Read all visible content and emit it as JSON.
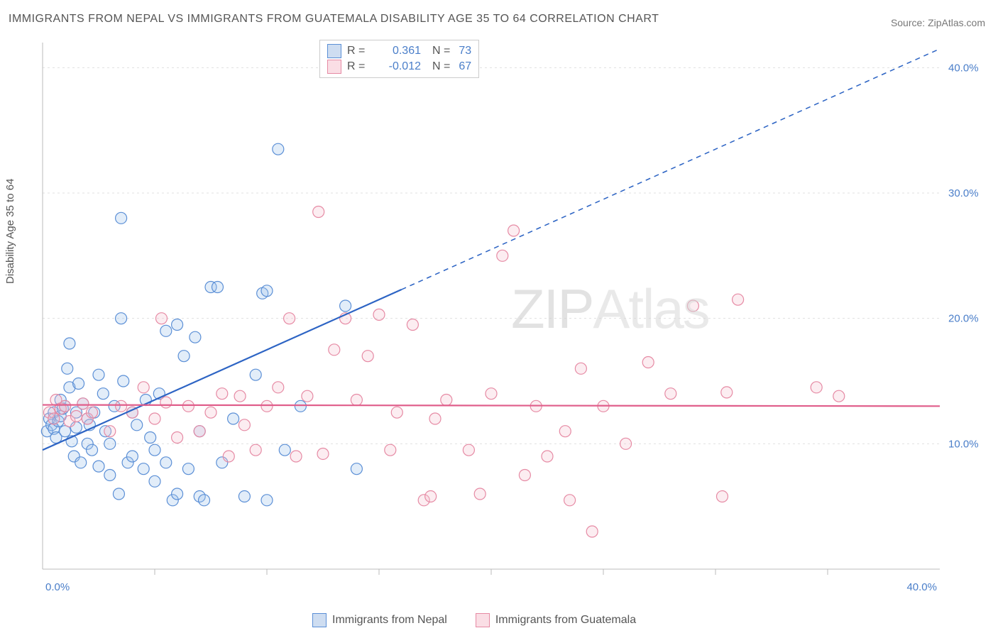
{
  "title": "IMMIGRANTS FROM NEPAL VS IMMIGRANTS FROM GUATEMALA DISABILITY AGE 35 TO 64 CORRELATION CHART",
  "source": "Source: ZipAtlas.com",
  "ylabel": "Disability Age 35 to 64",
  "watermark_a": "ZIP",
  "watermark_b": "Atlas",
  "chart": {
    "type": "scatter",
    "background_color": "#ffffff",
    "grid_color": "#e0e0e0",
    "axis_line_color": "#bbbbbb",
    "tick_label_color": "#4a7ec9",
    "xlim": [
      0,
      40
    ],
    "ylim": [
      0,
      42
    ],
    "xticks": [
      0,
      40
    ],
    "xtick_labels": [
      "0.0%",
      "40.0%"
    ],
    "yticks": [
      10,
      20,
      30,
      40
    ],
    "ytick_labels": [
      "10.0%",
      "20.0%",
      "30.0%",
      "40.0%"
    ],
    "xtick_minor": [
      5,
      10,
      15,
      20,
      25,
      30,
      35
    ],
    "marker_radius": 8,
    "marker_fill_opacity": 0.3,
    "marker_stroke_width": 1.2,
    "series": [
      {
        "name": "Immigrants from Nepal",
        "label": "Immigrants from Nepal",
        "color_fill": "#9ec3eb",
        "color_stroke": "#5b8fd6",
        "R": "0.361",
        "N": "73",
        "trend": {
          "x1": 0,
          "y1": 9.5,
          "x2_solid": 16,
          "y2_solid": 22.3,
          "x2_dash": 40,
          "y2_dash": 41.5,
          "color": "#2d64c4",
          "width": 2.2
        },
        "points": [
          [
            0.2,
            11.0
          ],
          [
            0.3,
            12.0
          ],
          [
            0.4,
            11.5
          ],
          [
            0.5,
            11.2
          ],
          [
            0.5,
            12.5
          ],
          [
            0.6,
            10.5
          ],
          [
            0.7,
            11.8
          ],
          [
            0.8,
            13.5
          ],
          [
            0.8,
            12.2
          ],
          [
            0.9,
            12.8
          ],
          [
            1.0,
            11.0
          ],
          [
            1.0,
            13.0
          ],
          [
            1.1,
            16.0
          ],
          [
            1.2,
            14.5
          ],
          [
            1.2,
            18.0
          ],
          [
            1.3,
            10.2
          ],
          [
            1.4,
            9.0
          ],
          [
            1.5,
            12.5
          ],
          [
            1.5,
            11.3
          ],
          [
            1.6,
            14.8
          ],
          [
            1.7,
            8.5
          ],
          [
            1.8,
            13.2
          ],
          [
            2.0,
            10.0
          ],
          [
            2.0,
            12.0
          ],
          [
            2.1,
            11.5
          ],
          [
            2.2,
            9.5
          ],
          [
            2.3,
            12.5
          ],
          [
            2.5,
            15.5
          ],
          [
            2.5,
            8.2
          ],
          [
            2.7,
            14.0
          ],
          [
            2.8,
            11.0
          ],
          [
            3.0,
            10.0
          ],
          [
            3.0,
            7.5
          ],
          [
            3.2,
            13.0
          ],
          [
            3.4,
            6.0
          ],
          [
            3.5,
            28.0
          ],
          [
            3.5,
            20.0
          ],
          [
            3.6,
            15.0
          ],
          [
            3.8,
            8.5
          ],
          [
            4.0,
            9.0
          ],
          [
            4.0,
            12.5
          ],
          [
            4.2,
            11.5
          ],
          [
            4.5,
            8.0
          ],
          [
            4.6,
            13.5
          ],
          [
            4.8,
            10.5
          ],
          [
            5.0,
            7.0
          ],
          [
            5.0,
            9.5
          ],
          [
            5.2,
            14.0
          ],
          [
            5.5,
            8.5
          ],
          [
            5.5,
            19.0
          ],
          [
            5.8,
            5.5
          ],
          [
            6.0,
            19.5
          ],
          [
            6.0,
            6.0
          ],
          [
            6.3,
            17.0
          ],
          [
            6.5,
            8.0
          ],
          [
            6.8,
            18.5
          ],
          [
            7.0,
            5.8
          ],
          [
            7.0,
            11.0
          ],
          [
            7.2,
            5.5
          ],
          [
            7.5,
            22.5
          ],
          [
            7.8,
            22.5
          ],
          [
            8.0,
            8.5
          ],
          [
            8.5,
            12.0
          ],
          [
            9.0,
            5.8
          ],
          [
            9.5,
            15.5
          ],
          [
            9.8,
            22.0
          ],
          [
            10.0,
            5.5
          ],
          [
            10.0,
            22.2
          ],
          [
            10.5,
            33.5
          ],
          [
            10.8,
            9.5
          ],
          [
            11.5,
            13.0
          ],
          [
            13.5,
            21.0
          ],
          [
            14.0,
            8.0
          ]
        ]
      },
      {
        "name": "Immigrants from Guatemala",
        "label": "Immigrants from Guatemala",
        "color_fill": "#f6c5d2",
        "color_stroke": "#e68aa4",
        "R": "-0.012",
        "N": "67",
        "trend": {
          "x1": 0,
          "y1": 13.1,
          "x2_solid": 40,
          "y2_solid": 13.0,
          "x2_dash": 40,
          "y2_dash": 13.0,
          "color": "#e05e8b",
          "width": 2.2
        },
        "points": [
          [
            0.3,
            12.5
          ],
          [
            0.5,
            12.0
          ],
          [
            0.6,
            13.5
          ],
          [
            0.8,
            12.8
          ],
          [
            1.0,
            13.0
          ],
          [
            1.2,
            11.8
          ],
          [
            1.5,
            12.2
          ],
          [
            1.8,
            13.2
          ],
          [
            2.0,
            12.0
          ],
          [
            2.2,
            12.5
          ],
          [
            3.0,
            11.0
          ],
          [
            3.5,
            13.0
          ],
          [
            4.0,
            12.5
          ],
          [
            4.5,
            14.5
          ],
          [
            5.0,
            12.0
          ],
          [
            5.3,
            20.0
          ],
          [
            5.5,
            13.3
          ],
          [
            6.0,
            10.5
          ],
          [
            6.5,
            13.0
          ],
          [
            7.0,
            11.0
          ],
          [
            7.5,
            12.5
          ],
          [
            8.0,
            14.0
          ],
          [
            8.3,
            9.0
          ],
          [
            8.8,
            13.8
          ],
          [
            9.0,
            11.5
          ],
          [
            9.5,
            9.5
          ],
          [
            10.0,
            13.0
          ],
          [
            10.5,
            14.5
          ],
          [
            11.0,
            20.0
          ],
          [
            11.3,
            9.0
          ],
          [
            11.8,
            13.8
          ],
          [
            12.3,
            28.5
          ],
          [
            12.5,
            9.2
          ],
          [
            13.0,
            17.5
          ],
          [
            13.5,
            20.0
          ],
          [
            14.0,
            13.5
          ],
          [
            14.5,
            17.0
          ],
          [
            15.0,
            20.3
          ],
          [
            15.5,
            9.5
          ],
          [
            15.8,
            12.5
          ],
          [
            16.5,
            19.5
          ],
          [
            17.0,
            5.5
          ],
          [
            17.3,
            5.8
          ],
          [
            17.5,
            12.0
          ],
          [
            18.0,
            13.5
          ],
          [
            19.0,
            9.5
          ],
          [
            19.5,
            6.0
          ],
          [
            20.0,
            14.0
          ],
          [
            20.5,
            25.0
          ],
          [
            21.0,
            27.0
          ],
          [
            21.5,
            7.5
          ],
          [
            22.0,
            13.0
          ],
          [
            22.5,
            9.0
          ],
          [
            23.3,
            11.0
          ],
          [
            23.5,
            5.5
          ],
          [
            24.0,
            16.0
          ],
          [
            24.5,
            3.0
          ],
          [
            25.0,
            13.0
          ],
          [
            26.0,
            10.0
          ],
          [
            27.0,
            16.5
          ],
          [
            28.0,
            14.0
          ],
          [
            29.0,
            21.0
          ],
          [
            30.3,
            5.8
          ],
          [
            30.5,
            14.1
          ],
          [
            31.0,
            21.5
          ],
          [
            34.5,
            14.5
          ],
          [
            35.5,
            13.8
          ]
        ]
      }
    ]
  },
  "top_legend": {
    "R_label": "R =",
    "N_label": "N ="
  },
  "bottom_legend_series1": "Immigrants from Nepal",
  "bottom_legend_series2": "Immigrants from Guatemala"
}
